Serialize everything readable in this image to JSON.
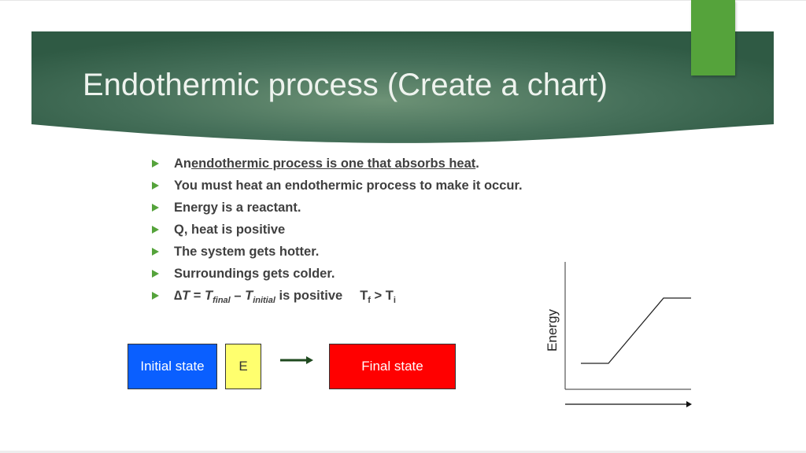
{
  "slide": {
    "title": "Endothermic process (Create a chart)",
    "bullets": {
      "b1": {
        "prefix": "An ",
        "underlined": "endothermic process is one that absorbs heat",
        "suffix": "."
      },
      "b2": "You must heat an endothermic process to make it occur.",
      "b3": "Energy is a reactant.",
      "b4": "Q, heat is positive",
      "b5": "The system gets hotter.",
      "b6": "Surroundings gets colder.",
      "b7": {
        "delta": "∆",
        "t": "T",
        "eq": " = ",
        "t2": "T",
        "sub_final": "final",
        "minus": " – ",
        "t3": "T",
        "sub_initial": "initial",
        "rest": " is positive",
        "tf": "T",
        "sub_f": "f",
        "gt": " > T",
        "sub_i": "i"
      }
    },
    "diagram": {
      "initial_label": "Initial state",
      "e_label": "E",
      "final_label": "Final state"
    },
    "chart_data": {
      "type": "line",
      "ylabel": "Energy",
      "xlabel": "",
      "series": [
        {
          "x": [
            0,
            1,
            2,
            3,
            4
          ],
          "y": [
            0,
            0,
            0.5,
            1,
            1
          ]
        }
      ]
    },
    "colors": {
      "accent": "#55a33b",
      "banner": "#3a6249",
      "initial_box": "#0a5fff",
      "e_box": "#ffff6e",
      "final_box": "#ff0000"
    }
  }
}
